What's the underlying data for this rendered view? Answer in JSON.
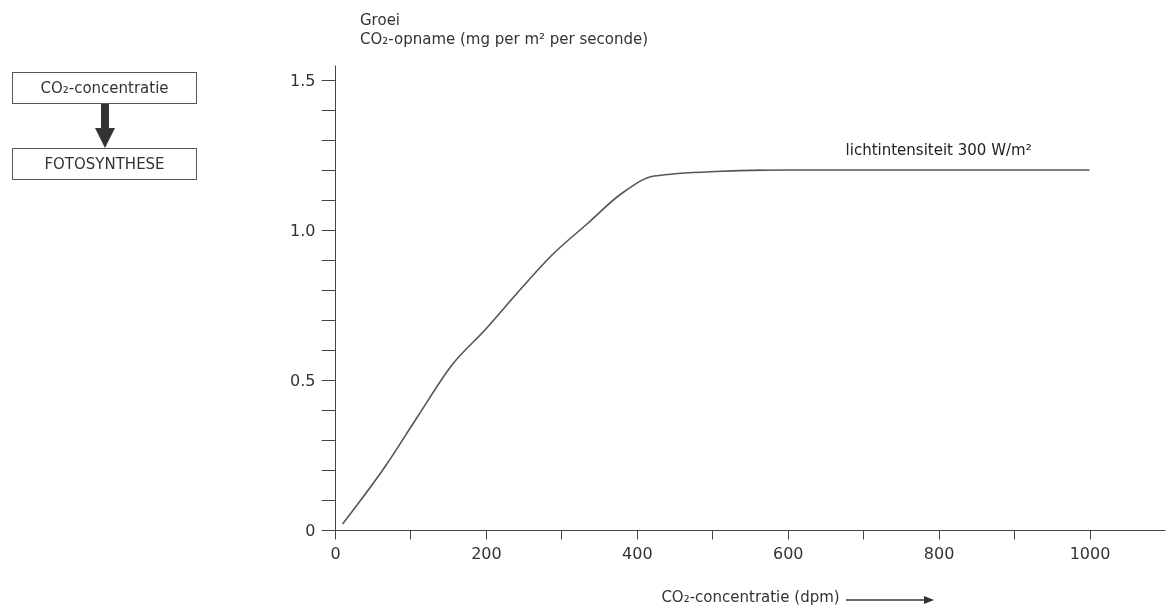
{
  "chart_data": {
    "type": "line",
    "title": "Groei",
    "ylabel": "CO₂-opname (mg per m² per seconde)",
    "xlabel": "CO₂-concentratie (dpm)",
    "x": [
      10,
      66,
      110,
      155,
      200,
      245,
      289,
      334,
      379,
      423,
      504,
      600,
      700,
      800,
      900,
      1000
    ],
    "values": [
      0.02,
      0.21,
      0.38,
      0.55,
      0.67,
      0.8,
      0.92,
      1.02,
      1.12,
      1.18,
      1.195,
      1.2,
      1.2,
      1.2,
      1.2,
      1.2
    ],
    "color": "#555555",
    "xlim": [
      0,
      1100
    ],
    "xticks": [
      0,
      {
        "value": 100,
        "label": null
      },
      200,
      {
        "value": 300,
        "label": null
      },
      400,
      {
        "value": 500,
        "label": null
      },
      600,
      {
        "value": 700,
        "label": null
      },
      800,
      {
        "value": 900,
        "label": null
      },
      1000
    ],
    "ylim": [
      0,
      1.55
    ],
    "yticks": [
      0,
      {
        "value": 0.1,
        "label": null
      },
      {
        "value": 0.2,
        "label": null
      },
      {
        "value": 0.3,
        "label": null
      },
      {
        "value": 0.4,
        "label": null
      },
      0.5,
      {
        "value": 0.6,
        "label": null
      },
      {
        "value": 0.7,
        "label": null
      },
      {
        "value": 0.8,
        "label": null
      },
      {
        "value": 0.9,
        "label": null
      },
      {
        "value": 1,
        "label": "1.0"
      },
      {
        "value": 1.1,
        "label": null
      },
      {
        "value": 1.2,
        "label": null
      },
      {
        "value": 1.3,
        "label": null
      },
      {
        "value": 1.4,
        "label": null
      },
      1.5
    ],
    "annotations": [
      {
        "text": "lichtintensiteit 300 W/m²",
        "x": 800,
        "y": 1.2
      },
      "CO₂-concentratie",
      "FOTOSYNTHESE"
    ]
  }
}
